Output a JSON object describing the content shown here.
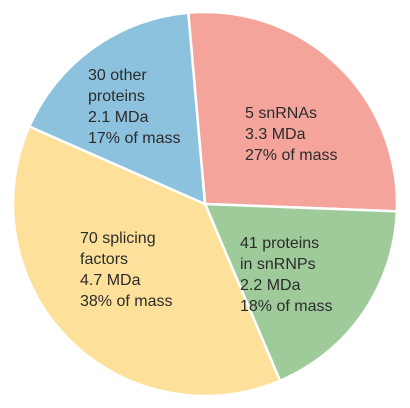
{
  "chart_data": {
    "type": "pie",
    "title": "",
    "start_angle_deg": -5,
    "direction": "clockwise",
    "slices": [
      {
        "name": "5 snRNAs",
        "value": 27,
        "color": "#f4a49b",
        "lines": [
          "5 snRNAs",
          "3.3 MDa",
          "27% of mass"
        ]
      },
      {
        "name": "41 proteins in snRNPs",
        "value": 18,
        "color": "#9fcb9b",
        "lines": [
          "41 proteins",
          "in snRNPs",
          "2.2 MDa",
          "18% of mass"
        ]
      },
      {
        "name": "70 splicing factors",
        "value": 38,
        "color": "#fde19a",
        "lines": [
          "70 splicing",
          "factors",
          "4.7 MDa",
          "38% of mass"
        ]
      },
      {
        "name": "30 other proteins",
        "value": 17,
        "color": "#8cc2de",
        "lines": [
          "30 other",
          "proteins",
          "2.1 MDa",
          "17% of mass"
        ]
      }
    ]
  }
}
